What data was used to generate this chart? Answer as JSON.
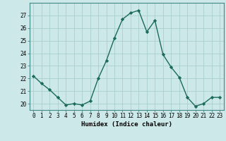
{
  "x": [
    0,
    1,
    2,
    3,
    4,
    5,
    6,
    7,
    8,
    9,
    10,
    11,
    12,
    13,
    14,
    15,
    16,
    17,
    18,
    19,
    20,
    21,
    22,
    23
  ],
  "y": [
    22.2,
    21.6,
    21.1,
    20.5,
    19.9,
    20.0,
    19.9,
    20.2,
    22.0,
    23.4,
    25.2,
    26.7,
    27.2,
    27.4,
    25.7,
    26.6,
    23.9,
    22.9,
    22.1,
    20.5,
    19.8,
    20.0,
    20.5,
    20.5
  ],
  "line_color": "#1a6b5a",
  "marker": "D",
  "marker_size": 2.2,
  "bg_color": "#cce8e8",
  "grid_color": "#aacece",
  "xlabel": "Humidex (Indice chaleur)",
  "ylim": [
    19.5,
    28.0
  ],
  "xlim": [
    -0.5,
    23.5
  ],
  "yticks": [
    20,
    21,
    22,
    23,
    24,
    25,
    26,
    27
  ],
  "xticks": [
    0,
    1,
    2,
    3,
    4,
    5,
    6,
    7,
    8,
    9,
    10,
    11,
    12,
    13,
    14,
    15,
    16,
    17,
    18,
    19,
    20,
    21,
    22,
    23
  ],
  "label_fontsize": 6.5,
  "tick_fontsize": 5.5,
  "spine_color": "#448888",
  "line_width": 1.0
}
